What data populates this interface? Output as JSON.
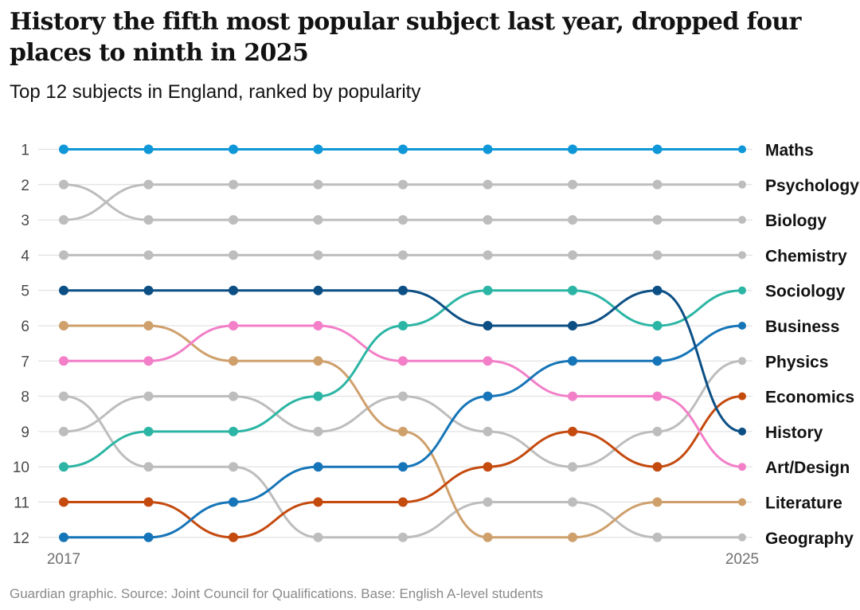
{
  "title": "History the fifth most popular subject last year, dropped four places to ninth in 2025",
  "subtitle": "Top 12 subjects in England, ranked by popularity",
  "footer": "Guardian graphic. Source: Joint Council for Qualifications. Base: English A-level students",
  "chart_data": {
    "type": "line",
    "x": [
      2017,
      2018,
      2019,
      2020,
      2021,
      2022,
      2023,
      2024,
      2025
    ],
    "x_tick_labels": [
      "2017",
      "2025"
    ],
    "y_tick_labels": [
      "1",
      "2",
      "3",
      "4",
      "5",
      "6",
      "7",
      "8",
      "9",
      "10",
      "11",
      "12"
    ],
    "ylim": [
      1,
      12
    ],
    "y_inverted": true,
    "grid": true,
    "series": [
      {
        "name": "Maths",
        "color": "#0f97d8",
        "ranks": [
          1,
          1,
          1,
          1,
          1,
          1,
          1,
          1,
          1
        ]
      },
      {
        "name": "Psychology",
        "color": "#bdbdbd",
        "ranks": [
          3,
          2,
          2,
          2,
          2,
          2,
          2,
          2,
          2
        ]
      },
      {
        "name": "Biology",
        "color": "#bdbdbd",
        "ranks": [
          2,
          3,
          3,
          3,
          3,
          3,
          3,
          3,
          3
        ]
      },
      {
        "name": "Chemistry",
        "color": "#bdbdbd",
        "ranks": [
          4,
          4,
          4,
          4,
          4,
          4,
          4,
          4,
          4
        ]
      },
      {
        "name": "Physics",
        "color": "#bdbdbd",
        "ranks": [
          9,
          8,
          8,
          9,
          8,
          9,
          10,
          9,
          7
        ]
      },
      {
        "name": "Geography",
        "color": "#bdbdbd",
        "ranks": [
          8,
          10,
          10,
          12,
          12,
          11,
          11,
          12,
          12
        ]
      },
      {
        "name": "Literature",
        "color": "#cfa06c",
        "ranks": [
          6,
          6,
          7,
          7,
          9,
          12,
          12,
          11,
          11
        ]
      },
      {
        "name": "Economics",
        "color": "#c44a0e",
        "ranks": [
          11,
          11,
          12,
          11,
          11,
          10,
          9,
          10,
          8
        ]
      },
      {
        "name": "Art/Design",
        "color": "#f27fc8",
        "ranks": [
          7,
          7,
          6,
          6,
          7,
          7,
          8,
          8,
          10
        ]
      },
      {
        "name": "Business",
        "color": "#1675b8",
        "ranks": [
          12,
          12,
          11,
          10,
          10,
          8,
          7,
          7,
          6
        ]
      },
      {
        "name": "Sociology",
        "color": "#2cb5a4",
        "ranks": [
          10,
          9,
          9,
          8,
          6,
          5,
          5,
          6,
          5
        ]
      },
      {
        "name": "History",
        "color": "#0c4f85",
        "ranks": [
          5,
          5,
          5,
          5,
          5,
          6,
          6,
          5,
          9
        ]
      }
    ],
    "labels_2025": [
      {
        "rank": 1,
        "name": "Maths"
      },
      {
        "rank": 2,
        "name": "Psychology"
      },
      {
        "rank": 3,
        "name": "Biology"
      },
      {
        "rank": 4,
        "name": "Chemistry"
      },
      {
        "rank": 5,
        "name": "Sociology"
      },
      {
        "rank": 6,
        "name": "Business"
      },
      {
        "rank": 7,
        "name": "Physics"
      },
      {
        "rank": 8,
        "name": "Economics"
      },
      {
        "rank": 9,
        "name": "History"
      },
      {
        "rank": 10,
        "name": "Art/Design"
      },
      {
        "rank": 11,
        "name": "Literature"
      },
      {
        "rank": 12,
        "name": "Geography"
      }
    ]
  }
}
